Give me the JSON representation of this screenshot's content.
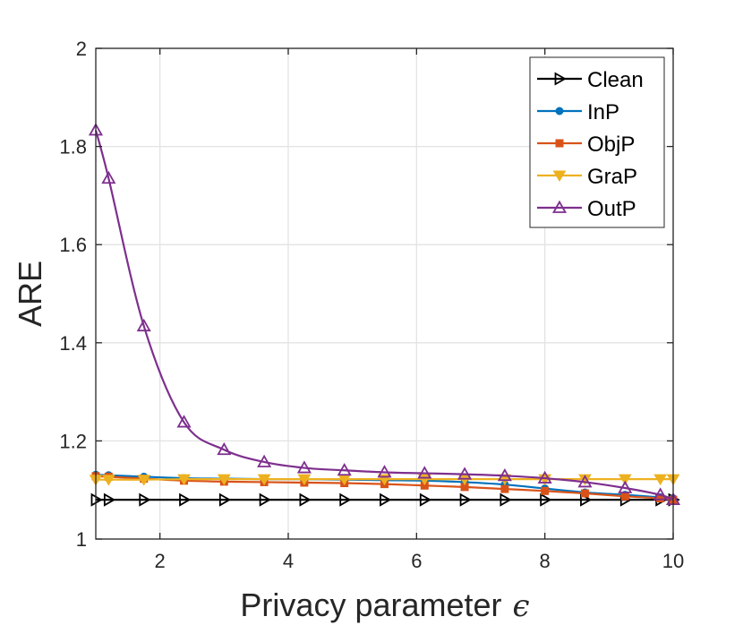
{
  "chart_data": {
    "type": "line",
    "xlabel": "Privacy parameter",
    "xlabel_symbol": "ϵ",
    "ylabel": "ARE",
    "xlim": [
      1,
      10
    ],
    "ylim": [
      1,
      2
    ],
    "xticks": [
      2,
      4,
      6,
      8,
      10
    ],
    "yticks": [
      1,
      1.2,
      1.4,
      1.6,
      1.8,
      2
    ],
    "ytick_labels": [
      "1",
      "1.2",
      "1.4",
      "1.6",
      "1.8",
      "2"
    ],
    "grid": true,
    "legend_position": "top-right",
    "x": [
      1,
      1.2,
      1.75,
      2.375,
      3,
      3.625,
      4.25,
      4.875,
      5.5,
      6.125,
      6.75,
      7.375,
      8,
      8.625,
      9.25,
      9.8,
      10
    ],
    "series": [
      {
        "name": "Clean",
        "color": "#000000",
        "marker": "triangle-right",
        "values": [
          1.08,
          1.08,
          1.08,
          1.08,
          1.08,
          1.08,
          1.08,
          1.08,
          1.08,
          1.08,
          1.08,
          1.08,
          1.08,
          1.08,
          1.08,
          1.08,
          1.08
        ]
      },
      {
        "name": "InP",
        "color": "#0072BD",
        "marker": "circle",
        "values": [
          1.131,
          1.13,
          1.127,
          1.124,
          1.123,
          1.122,
          1.122,
          1.121,
          1.12,
          1.119,
          1.116,
          1.111,
          1.103,
          1.095,
          1.09,
          1.085,
          1.083
        ]
      },
      {
        "name": "ObjP",
        "color": "#D95319",
        "marker": "square",
        "values": [
          1.128,
          1.127,
          1.123,
          1.119,
          1.117,
          1.116,
          1.115,
          1.114,
          1.112,
          1.109,
          1.106,
          1.102,
          1.098,
          1.093,
          1.087,
          1.083,
          1.08
        ]
      },
      {
        "name": "GraP",
        "color": "#EDB120",
        "marker": "triangle-down",
        "values": [
          1.121,
          1.121,
          1.121,
          1.122,
          1.122,
          1.122,
          1.122,
          1.122,
          1.122,
          1.122,
          1.122,
          1.122,
          1.122,
          1.122,
          1.122,
          1.122,
          1.122
        ]
      },
      {
        "name": "OutP",
        "color": "#7E2F8E",
        "marker": "triangle-up",
        "values": [
          1.833,
          1.735,
          1.434,
          1.238,
          1.182,
          1.157,
          1.145,
          1.14,
          1.136,
          1.134,
          1.132,
          1.129,
          1.124,
          1.116,
          1.104,
          1.09,
          1.08
        ]
      }
    ]
  }
}
